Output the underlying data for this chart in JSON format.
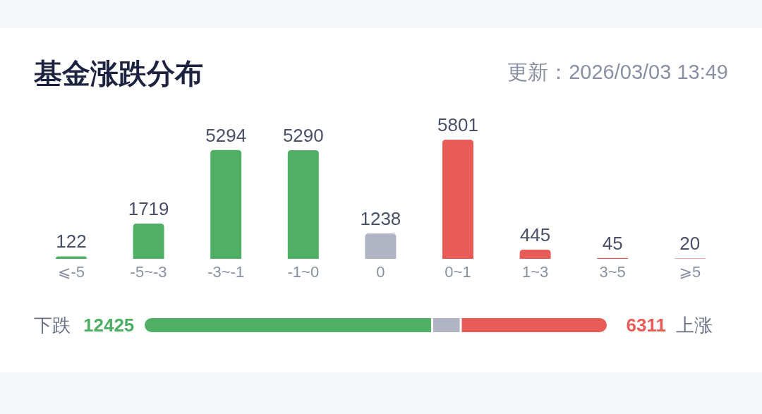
{
  "chart_data": [
    {
      "type": "bar",
      "title": "基金涨跌分布",
      "annotations": [
        "更新：2026/03/03 13:49"
      ],
      "categories": [
        "⩽-5",
        "-5~-3",
        "-3~-1",
        "-1~0",
        "0",
        "0~1",
        "1~3",
        "3~5",
        "⩾5"
      ],
      "values": [
        122,
        1719,
        5294,
        5290,
        1238,
        5801,
        445,
        45,
        20
      ],
      "colors": [
        "#4faf65",
        "#4faf65",
        "#4faf65",
        "#4faf65",
        "#b1b5c3",
        "#e95b57",
        "#e95b57",
        "#e95b57",
        "#e95b57"
      ],
      "data_labels": true
    },
    {
      "type": "bar",
      "orientation": "horizontal",
      "stacked": true,
      "xlim": [
        0,
        19974
      ],
      "categories": [
        null
      ],
      "annotations": [
        "下跌",
        "上涨"
      ],
      "series": [
        {
          "color": "#4faf65",
          "values": [
            12425
          ],
          "value_labels": [
            "12425"
          ]
        },
        {
          "color": "#b1b5c3",
          "values": [
            1238
          ],
          "value_labels": [
            null
          ]
        },
        {
          "color": "#e95b57",
          "values": [
            6311
          ],
          "value_labels": [
            "6311"
          ]
        }
      ]
    }
  ]
}
